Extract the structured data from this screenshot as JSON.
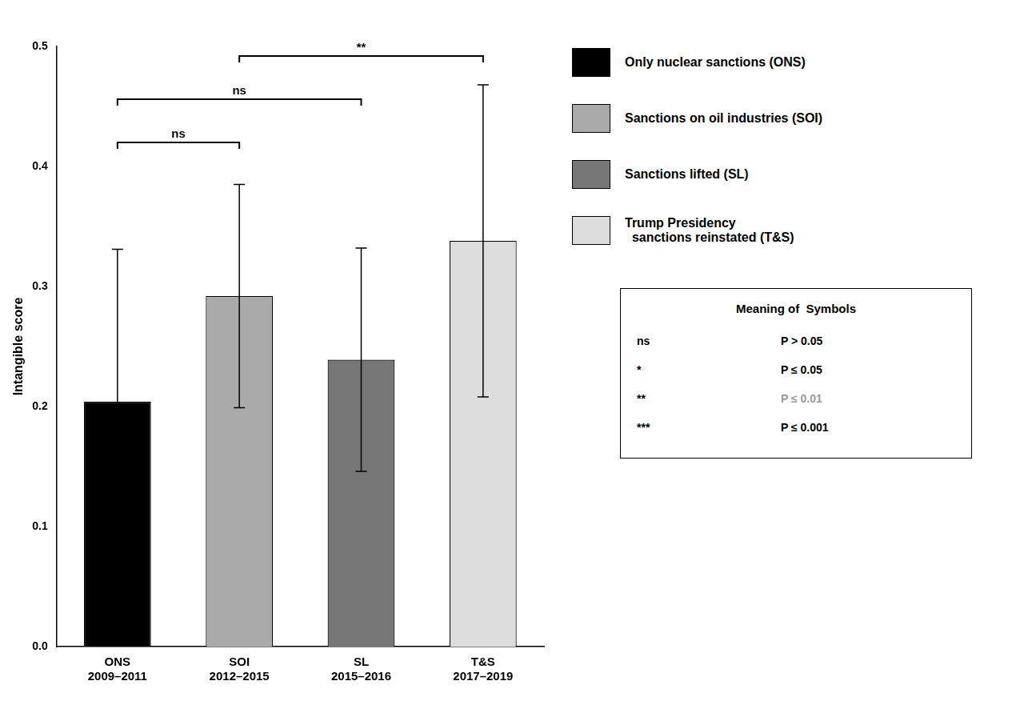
{
  "chart_data": {
    "type": "bar",
    "categories": [
      "ONS",
      "SOI",
      "SL",
      "T&S"
    ],
    "date_labels": [
      "2009–2011",
      "2012–2015",
      "2015–2016",
      "2017–2019"
    ],
    "values": [
      0.204,
      0.292,
      0.239,
      0.338
    ],
    "errors": [
      0.127,
      0.093,
      0.093,
      0.13
    ],
    "colors": [
      "#000000",
      "#aaaaaa",
      "#777777",
      "#dddddd"
    ],
    "ylabel": "Intangible score",
    "ylim": [
      0.0,
      0.5
    ],
    "yticks": [
      {
        "value": 0.0,
        "label": "0.0"
      },
      0.1,
      0.2,
      0.3,
      0.4,
      0.5
    ],
    "grid": false,
    "legend": "right",
    "legend_entries": [
      {
        "name": "Only nuclear sanctions (ONS)",
        "color": "#000000"
      },
      {
        "name": "Sanctions on oil industries (SOI)",
        "color": "#aaaaaa"
      },
      {
        "name": "Sanctions lifted (SL)",
        "color": "#777777"
      },
      {
        "name": "Trump Presidency\n  sanctions reinstated (T&S)",
        "color": "#dddddd"
      }
    ],
    "brackets": [
      {
        "from": "ONS",
        "to": "SOI",
        "y": 0.42,
        "label": "ns"
      },
      {
        "from": "ONS",
        "to": "SL",
        "y": 0.456,
        "label": "ns"
      },
      {
        "from": "SOI",
        "to": "T&S",
        "y": 0.492,
        "label": "**"
      }
    ],
    "symbol_table": {
      "title": "Meaning of  Symbols",
      "rows": [
        {
          "symbol": "ns",
          "meaning": "P > 0.05",
          "color": "#000000"
        },
        {
          "symbol": "*",
          "meaning": "P ≤ 0.05",
          "color": "#000000"
        },
        {
          "symbol": "**",
          "meaning": "P ≤ 0.01",
          "color": "#999999"
        },
        {
          "symbol": "***",
          "meaning": "P ≤ 0.001",
          "color": "#000000"
        }
      ]
    }
  }
}
